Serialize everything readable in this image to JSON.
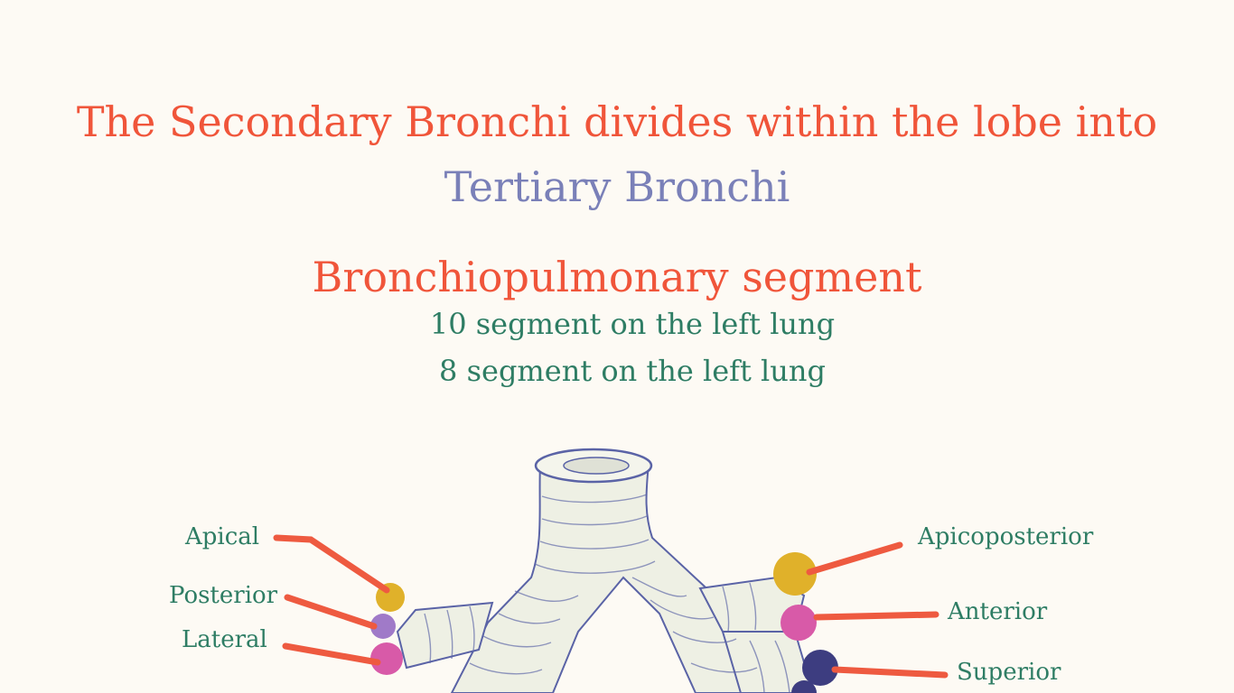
{
  "title": {
    "line1": "The Secondary Bronchi divides within the lobe into",
    "line2": "Tertiary Bronchi"
  },
  "segment": {
    "heading": "Bronchiopulmonary segment",
    "line1": "10 segment on the left lung",
    "line2": "8 segment on the left lung"
  },
  "labels": {
    "left": [
      "Apical",
      "Posterior",
      "Lateral"
    ],
    "right": [
      "Apicoposterior",
      "Anterior",
      "Superior"
    ]
  },
  "colors": {
    "title": "#f0553a",
    "subtitle": "#7a80b8",
    "text": "#2e7d64",
    "pointer": "#ee5a40",
    "bronchus_fill": "#eef0e4",
    "bronchus_stroke": "#5a63a6",
    "apical": "#e0b12a",
    "posterior": "#a07ac8",
    "lateral": "#d85aa8",
    "superior": "#3d3d80"
  }
}
